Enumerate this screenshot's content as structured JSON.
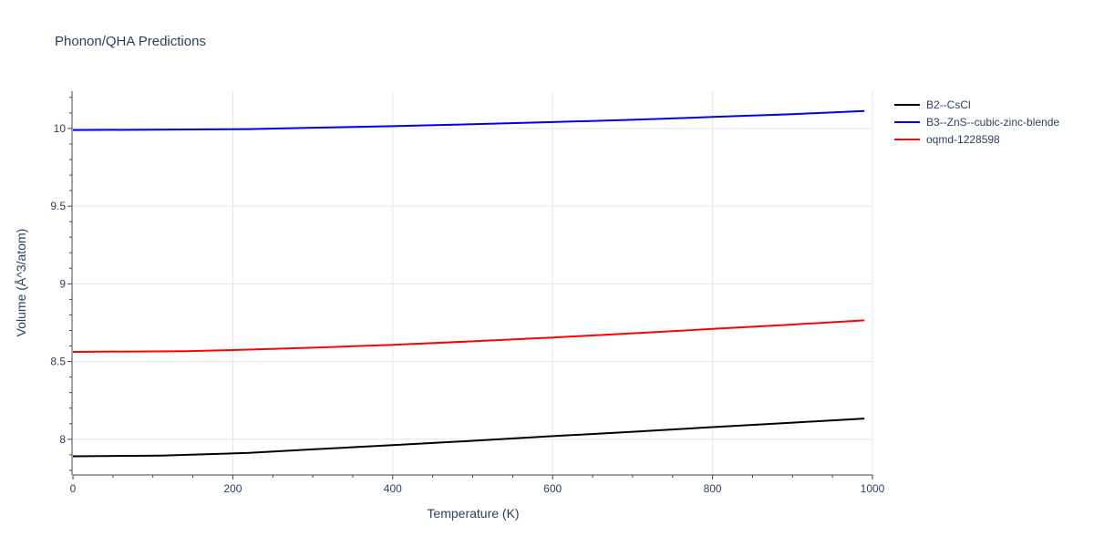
{
  "chart_data": {
    "type": "line",
    "title": "Phonon/QHA Predictions",
    "xlabel": "Temperature (K)",
    "ylabel": "Volume (Å^3/atom)",
    "xlim": [
      0,
      1000
    ],
    "ylim": [
      7.77,
      10.24
    ],
    "xticks": [
      0,
      200,
      400,
      600,
      800,
      1000
    ],
    "yticks": [
      8,
      8.5,
      9,
      9.5,
      10
    ],
    "ytick_labels": [
      "8",
      "8.5",
      "9",
      "9.5",
      "10"
    ],
    "grid": true,
    "legend_position": "top-right",
    "series": [
      {
        "name": "B2--CsCl",
        "color": "#000000",
        "x": [
          0,
          110,
          220,
          300,
          400,
          500,
          600,
          700,
          800,
          900,
          990
        ],
        "y": [
          7.89,
          7.895,
          7.912,
          7.935,
          7.962,
          7.99,
          8.02,
          8.048,
          8.078,
          8.107,
          8.133
        ]
      },
      {
        "name": "B3--ZnS--cubic-zinc-blende",
        "color": "#0000ee",
        "x": [
          0,
          100,
          220,
          300,
          400,
          500,
          600,
          700,
          800,
          900,
          990
        ],
        "y": [
          9.99,
          9.992,
          9.996,
          10.005,
          10.015,
          10.027,
          10.041,
          10.056,
          10.074,
          10.092,
          10.112
        ]
      },
      {
        "name": "oqmd-1228598",
        "color": "#ff0000",
        "x": [
          0,
          140,
          200,
          300,
          400,
          500,
          600,
          700,
          800,
          900,
          990
        ],
        "y": [
          8.562,
          8.567,
          8.574,
          8.589,
          8.608,
          8.63,
          8.655,
          8.682,
          8.71,
          8.738,
          8.765
        ]
      }
    ]
  }
}
